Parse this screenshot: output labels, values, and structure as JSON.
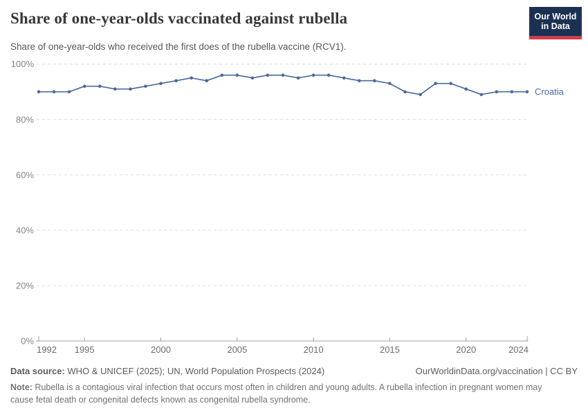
{
  "header": {
    "title": "Share of one-year-olds vaccinated against rubella",
    "subtitle": "Share of one-year-olds who received the first does of the rubella vaccine (RCV1).",
    "logo_line1": "Our World",
    "logo_line2": "in Data"
  },
  "chart_data": {
    "type": "line",
    "title": "Share of one-year-olds vaccinated against rubella",
    "xlabel": "",
    "ylabel": "",
    "xlim": [
      1992,
      2024
    ],
    "ylim": [
      0,
      100
    ],
    "grid": "horizontal-dashed",
    "legend_position": "end-of-line-label",
    "x_ticks": [
      1992,
      1995,
      2000,
      2005,
      2010,
      2015,
      2020,
      2024
    ],
    "y_ticks": [
      0,
      20,
      40,
      60,
      80,
      100
    ],
    "y_tick_suffix": "%",
    "series": [
      {
        "name": "Croatia",
        "x": [
          1992,
          1993,
          1994,
          1995,
          1996,
          1997,
          1998,
          1999,
          2000,
          2001,
          2002,
          2003,
          2004,
          2005,
          2006,
          2007,
          2008,
          2009,
          2010,
          2011,
          2012,
          2013,
          2014,
          2015,
          2016,
          2017,
          2018,
          2019,
          2020,
          2021,
          2022,
          2023,
          2024
        ],
        "values": [
          90,
          90,
          90,
          92,
          92,
          91,
          91,
          92,
          93,
          94,
          95,
          94,
          96,
          96,
          95,
          96,
          96,
          95,
          96,
          96,
          95,
          94,
          94,
          93,
          90,
          89,
          93,
          93,
          91,
          89,
          90,
          90,
          90
        ]
      }
    ]
  },
  "footer": {
    "source_label": "Data source:",
    "source_text": " WHO & UNICEF (2025); UN, World Population Prospects (2024)",
    "link_text": "OurWorldinData.org/vaccination | CC BY",
    "note_label": "Note:",
    "note_text": " Rubella is a contagious viral infection that occurs most often in children and young adults. A rubella infection in pregnant women may cause fetal death or congenital defects known as congenital rubella syndrome."
  },
  "colors": {
    "line": "#4C6A9C",
    "grid": "#dcdcdc",
    "axis": "#9e9e9e",
    "y_tick_label": "#858585",
    "x_tick_label": "#6b6b6b",
    "logo_bg": "#1c3152",
    "logo_stripe": "#d23d4e"
  }
}
